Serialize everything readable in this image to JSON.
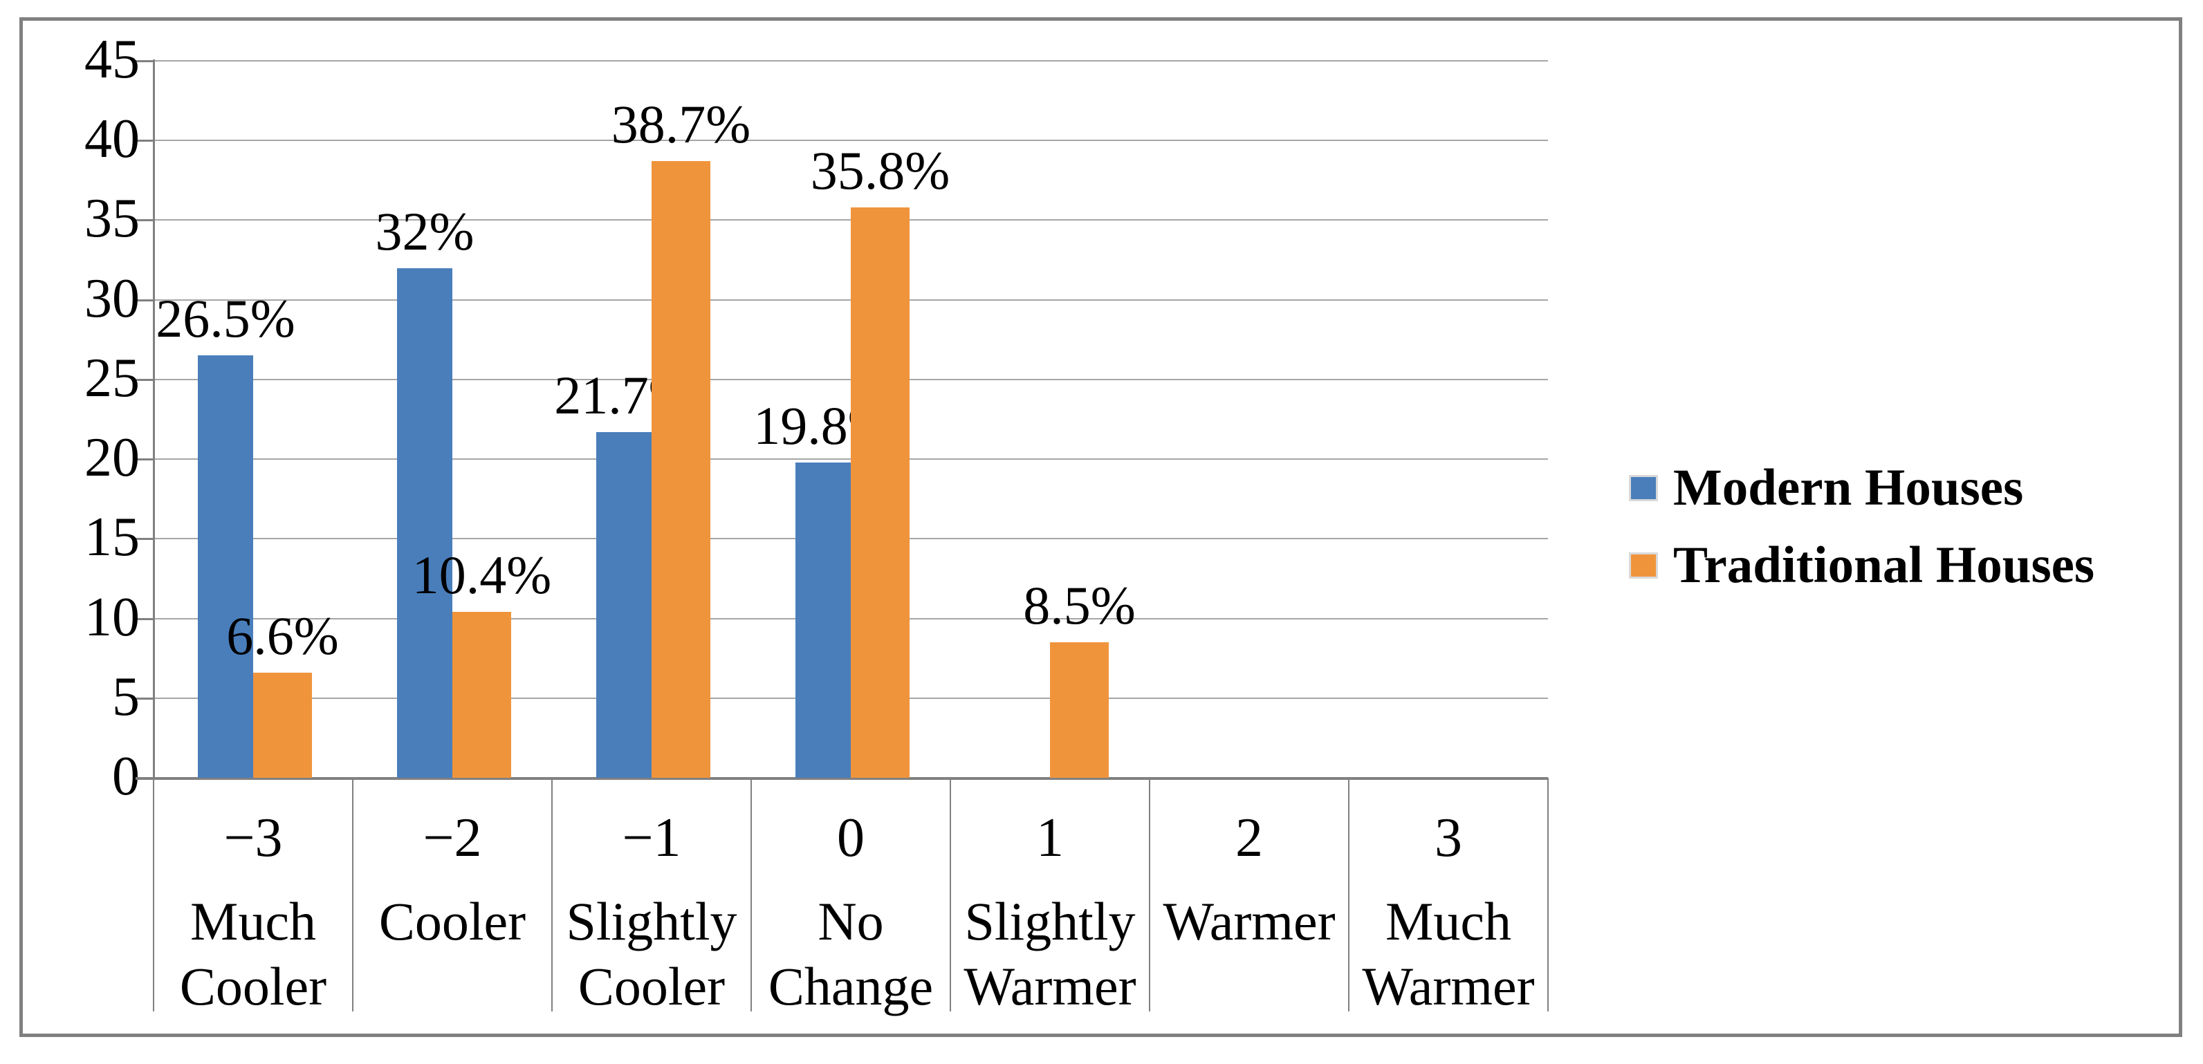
{
  "chart_data": {
    "type": "bar",
    "title": "",
    "grid": true,
    "legend_position": "right",
    "y_axis": {
      "min": 0,
      "max": 45,
      "step": 5,
      "tick_labels": [
        "0",
        "5",
        "10",
        "15",
        "20",
        "25",
        "30",
        "35",
        "40",
        "45"
      ]
    },
    "categories": [
      {
        "code": "−3",
        "word_lines": [
          "Much",
          "Cooler"
        ]
      },
      {
        "code": "−2",
        "word_lines": [
          "Cooler"
        ]
      },
      {
        "code": "−1",
        "word_lines": [
          "Slightly",
          "Cooler"
        ]
      },
      {
        "code": "0",
        "word_lines": [
          "No",
          "Change"
        ]
      },
      {
        "code": "1",
        "word_lines": [
          "Slightly",
          "Warmer"
        ]
      },
      {
        "code": "2",
        "word_lines": [
          "Warmer"
        ]
      },
      {
        "code": "3",
        "word_lines": [
          "Much",
          "Warmer"
        ]
      }
    ],
    "series": [
      {
        "name": "Modern Houses",
        "color": "#4A7EBB",
        "values": [
          26.5,
          32,
          21.7,
          19.8,
          0,
          0,
          0
        ],
        "data_labels": [
          "26.5%",
          "32%",
          "21.7%",
          "19.8%",
          "",
          "",
          ""
        ]
      },
      {
        "name": "Traditional Houses",
        "color": "#F0943C",
        "values": [
          6.6,
          10.4,
          38.7,
          35.8,
          8.5,
          0,
          0
        ],
        "data_labels": [
          "6.6%",
          "10.4%",
          "38.7%",
          "35.8%",
          "8.5%",
          "",
          ""
        ]
      }
    ],
    "colors": {
      "gridline": "#A6A6A6",
      "axis": "#808080",
      "border": "#808080",
      "text": "#000000",
      "background": "#FFFFFF"
    }
  }
}
